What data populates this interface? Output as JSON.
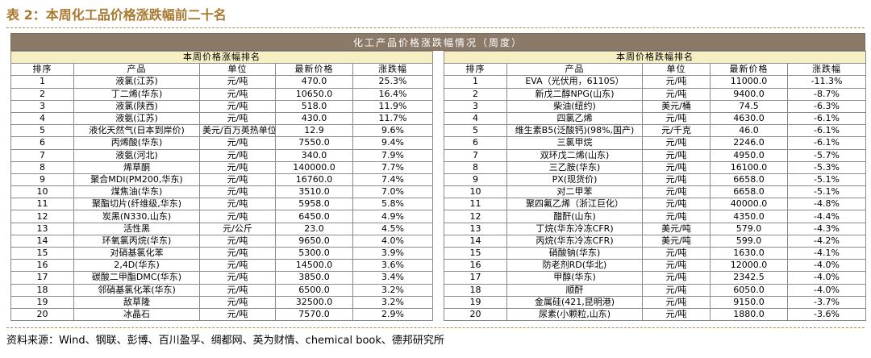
{
  "title": "表 2：本周化工品价格涨跌幅前二十名",
  "banner": "化工产品价格涨跌幅情况（周度）",
  "left": {
    "subtitle": "本周价格涨幅排名",
    "headers": [
      "排序",
      "产品",
      "单位",
      "最新价格",
      "涨跌幅"
    ],
    "rows": [
      [
        "1",
        "液氯(江苏)",
        "元/吨",
        "470.0",
        "25.3%"
      ],
      [
        "2",
        "丁二烯(华东)",
        "元/吨",
        "10650.0",
        "16.4%"
      ],
      [
        "3",
        "液氯(陕西)",
        "元/吨",
        "518.0",
        "11.9%"
      ],
      [
        "4",
        "液氨(江苏)",
        "元/吨",
        "430.0",
        "11.7%"
      ],
      [
        "5",
        "液化天然气(日本到岸价)",
        "美元/百万英热单位",
        "12.9",
        "9.6%"
      ],
      [
        "6",
        "丙烯酸(华东)",
        "元/吨",
        "7550.0",
        "9.4%"
      ],
      [
        "7",
        "液氨(河北)",
        "元/吨",
        "340.0",
        "7.9%"
      ],
      [
        "8",
        "烯草酮",
        "元/吨",
        "140000.0",
        "7.7%"
      ],
      [
        "9",
        "聚合MDI(PM200,华东)",
        "元/吨",
        "16760.0",
        "7.4%"
      ],
      [
        "10",
        "煤焦油(华东)",
        "元/吨",
        "3510.0",
        "7.0%"
      ],
      [
        "11",
        "聚酯切片(纤维级,华东)",
        "元/吨",
        "5958.0",
        "5.8%"
      ],
      [
        "12",
        "炭黑(N330,山东)",
        "元/吨",
        "6450.0",
        "4.9%"
      ],
      [
        "13",
        "活性黑",
        "元/公斤",
        "23.0",
        "4.5%"
      ],
      [
        "14",
        "环氧氯丙烷(华东)",
        "元/吨",
        "9650.0",
        "4.0%"
      ],
      [
        "15",
        "对硝基氯化苯",
        "元/吨",
        "5300.0",
        "3.9%"
      ],
      [
        "16",
        "2,4D(华东)",
        "元/吨",
        "14500.0",
        "3.6%"
      ],
      [
        "17",
        "碳酸二甲酯DMC(华东)",
        "元/吨",
        "3850.0",
        "3.4%"
      ],
      [
        "18",
        "邻硝基氯化苯(华东)",
        "元/吨",
        "6500.0",
        "3.2%"
      ],
      [
        "19",
        "敌草隆",
        "元/吨",
        "32500.0",
        "3.2%"
      ],
      [
        "20",
        "冰晶石",
        "元/吨",
        "7570.0",
        "2.9%"
      ]
    ]
  },
  "right": {
    "subtitle": "本周价格跌幅排名",
    "headers": [
      "排序",
      "产品",
      "单位",
      "最新价格",
      "涨跌幅"
    ],
    "rows": [
      [
        "1",
        "EVA（光伏用，6110S）",
        "元/吨",
        "11000.0",
        "-11.3%"
      ],
      [
        "2",
        "新戊二醇NPG(山东)",
        "元/吨",
        "9400.0",
        "-8.7%"
      ],
      [
        "3",
        "柴油(纽约)",
        "美元/桶",
        "74.5",
        "-6.3%"
      ],
      [
        "4",
        "四氯乙烯",
        "元/吨",
        "4630.0",
        "-6.1%"
      ],
      [
        "5",
        "维生素B5(泛酸钙)(98%,国产)",
        "元/千克",
        "46.0",
        "-6.1%"
      ],
      [
        "6",
        "三氯甲烷",
        "元/吨",
        "2246.0",
        "-6.1%"
      ],
      [
        "7",
        "双环戊二烯(山东)",
        "元/吨",
        "4950.0",
        "-5.7%"
      ],
      [
        "8",
        "三乙胺(华东)",
        "元/吨",
        "16100.0",
        "-5.3%"
      ],
      [
        "9",
        "PX(现货价)",
        "元/吨",
        "6658.0",
        "-5.1%"
      ],
      [
        "10",
        "对二甲苯",
        "元/吨",
        "6658.0",
        "-5.1%"
      ],
      [
        "11",
        "聚四氟乙烯（浙江巨化）",
        "元/吨",
        "40000.0",
        "-4.8%"
      ],
      [
        "12",
        "醋酐(山东)",
        "元/吨",
        "4350.0",
        "-4.4%"
      ],
      [
        "13",
        "丁烷(华东冷冻CFR)",
        "美元/吨",
        "579.0",
        "-4.3%"
      ],
      [
        "14",
        "丙烷(华东冷冻CFR)",
        "美元/吨",
        "599.0",
        "-4.2%"
      ],
      [
        "15",
        "硝酸钠(华东)",
        "元/吨",
        "1630.0",
        "-4.1%"
      ],
      [
        "16",
        "防老剂RD(华北)",
        "元/吨",
        "12000.0",
        "-4.0%"
      ],
      [
        "17",
        "甲醇(华东)",
        "元/吨",
        "2342.5",
        "-4.0%"
      ],
      [
        "18",
        "顺酐",
        "元/吨",
        "6050.0",
        "-4.0%"
      ],
      [
        "19",
        "金属硅(421,昆明港)",
        "元/吨",
        "9150.0",
        "-3.7%"
      ],
      [
        "20",
        "尿素(小颗粒,山东)",
        "元/吨",
        "1880.0",
        "-3.6%"
      ]
    ]
  },
  "source": "资料来源：Wind、钢联、彭博、百川盈孚、绸都网、英为财情、chemical book、德邦研究所"
}
